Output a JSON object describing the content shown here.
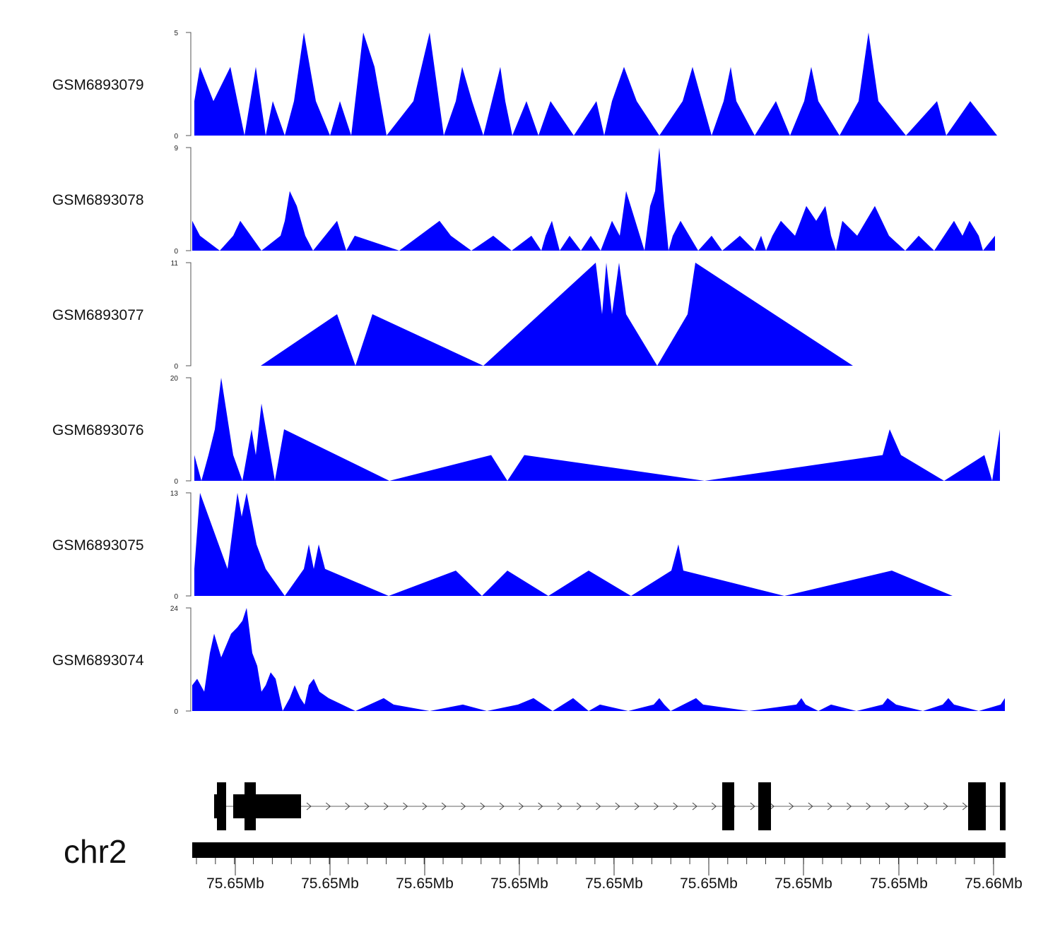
{
  "chart_data": {
    "type": "area",
    "fill_color": "#0000ff",
    "xlim": [
      0,
      1150
    ],
    "chromosome": "chr2",
    "x_axis_ticks": [
      "75.65Mb",
      "75.65Mb",
      "75.65Mb",
      "75.65Mb",
      "75.65Mb",
      "75.65Mb",
      "75.65Mb",
      "75.65Mb",
      "75.66Mb"
    ],
    "x_axis_tick_positions": [
      61,
      195,
      329,
      463,
      597,
      731,
      865,
      1000,
      1134
    ],
    "tracks": [
      {
        "name": "GSM6893079",
        "ylim": [
          0,
          5
        ],
        "ytick_labels": [
          "0",
          "5"
        ],
        "points": [
          [
            3,
            1.67
          ],
          [
            11,
            3.33
          ],
          [
            30,
            1.67
          ],
          [
            54,
            3.33
          ],
          [
            74,
            0
          ],
          [
            90,
            3.33
          ],
          [
            104,
            0
          ],
          [
            114,
            1.67
          ],
          [
            131,
            0
          ],
          [
            144,
            1.67
          ],
          [
            158,
            5
          ],
          [
            175,
            1.67
          ],
          [
            195,
            0
          ],
          [
            209,
            1.67
          ],
          [
            225,
            0
          ],
          [
            242,
            5
          ],
          [
            258,
            3.33
          ],
          [
            275,
            0
          ],
          [
            313,
            1.67
          ],
          [
            336,
            5
          ],
          [
            356,
            0
          ],
          [
            373,
            1.67
          ],
          [
            382,
            3.33
          ],
          [
            396,
            1.67
          ],
          [
            412,
            0
          ],
          [
            436,
            3.33
          ],
          [
            443,
            1.67
          ],
          [
            453,
            0
          ],
          [
            473,
            1.67
          ],
          [
            490,
            0
          ],
          [
            507,
            1.67
          ],
          [
            540,
            0
          ],
          [
            572,
            1.67
          ],
          [
            583,
            0
          ],
          [
            594,
            1.67
          ],
          [
            611,
            3.33
          ],
          [
            629,
            1.67
          ],
          [
            661,
            0
          ],
          [
            694,
            1.67
          ],
          [
            708,
            3.33
          ],
          [
            735,
            0
          ],
          [
            752,
            1.67
          ],
          [
            762,
            3.33
          ],
          [
            770,
            1.67
          ],
          [
            796,
            0
          ],
          [
            826,
            1.67
          ],
          [
            846,
            0
          ],
          [
            866,
            1.67
          ],
          [
            876,
            3.33
          ],
          [
            886,
            1.67
          ],
          [
            916,
            0
          ],
          [
            943,
            1.67
          ],
          [
            957,
            5
          ],
          [
            971,
            1.67
          ],
          [
            1010,
            0
          ],
          [
            1054,
            1.67
          ],
          [
            1067,
            0
          ],
          [
            1101,
            1.67
          ],
          [
            1139,
            0
          ]
        ]
      },
      {
        "name": "GSM6893078",
        "ylim": [
          0,
          9
        ],
        "ytick_labels": [
          "0",
          "9"
        ],
        "points": [
          [
            0,
            2.6
          ],
          [
            11,
            1.3
          ],
          [
            39,
            0
          ],
          [
            58,
            1.3
          ],
          [
            68,
            2.6
          ],
          [
            98,
            0
          ],
          [
            125,
            1.3
          ],
          [
            131,
            2.6
          ],
          [
            138,
            5.2
          ],
          [
            148,
            3.9
          ],
          [
            160,
            1.3
          ],
          [
            171,
            0
          ],
          [
            205,
            2.6
          ],
          [
            218,
            0
          ],
          [
            230,
            1.3
          ],
          [
            293,
            0
          ],
          [
            350,
            2.6
          ],
          [
            366,
            1.3
          ],
          [
            395,
            0
          ],
          [
            426,
            1.3
          ],
          [
            452,
            0
          ],
          [
            480,
            1.3
          ],
          [
            494,
            0
          ],
          [
            500,
            1.3
          ],
          [
            509,
            2.6
          ],
          [
            520,
            0
          ],
          [
            534,
            1.3
          ],
          [
            550,
            0
          ],
          [
            564,
            1.3
          ],
          [
            578,
            0
          ],
          [
            594,
            2.6
          ],
          [
            605,
            1.3
          ],
          [
            614,
            5.2
          ],
          [
            640,
            0
          ],
          [
            648,
            3.9
          ],
          [
            655,
            5.2
          ],
          [
            661,
            9
          ],
          [
            668,
            3.9
          ],
          [
            674,
            0
          ],
          [
            680,
            1.3
          ],
          [
            691,
            2.6
          ],
          [
            716,
            0
          ],
          [
            735,
            1.3
          ],
          [
            750,
            0
          ],
          [
            775,
            1.3
          ],
          [
            796,
            0
          ],
          [
            805,
            1.3
          ],
          [
            812,
            0
          ],
          [
            821,
            1.3
          ],
          [
            833,
            2.6
          ],
          [
            853,
            1.3
          ],
          [
            869,
            3.9
          ],
          [
            883,
            2.6
          ],
          [
            896,
            3.9
          ],
          [
            904,
            1.3
          ],
          [
            911,
            0
          ],
          [
            920,
            2.6
          ],
          [
            941,
            1.3
          ],
          [
            966,
            3.9
          ],
          [
            986,
            1.3
          ],
          [
            1009,
            0
          ],
          [
            1028,
            1.3
          ],
          [
            1050,
            0
          ],
          [
            1078,
            2.6
          ],
          [
            1090,
            1.3
          ],
          [
            1100,
            2.6
          ],
          [
            1113,
            1.3
          ],
          [
            1119,
            0
          ],
          [
            1136,
            1.3
          ]
        ]
      },
      {
        "name": "GSM6893077",
        "ylim": [
          0,
          11
        ],
        "ytick_labels": [
          "0",
          "11"
        ],
        "points": [
          [
            97,
            0
          ],
          [
            205,
            5.5
          ],
          [
            231,
            0
          ],
          [
            255,
            5.5
          ],
          [
            412,
            0
          ],
          [
            571,
            11
          ],
          [
            580,
            5.5
          ],
          [
            586,
            11
          ],
          [
            594,
            5.5
          ],
          [
            604,
            11
          ],
          [
            614,
            5.5
          ],
          [
            658,
            0
          ],
          [
            701,
            5.5
          ],
          [
            712,
            11
          ],
          [
            935,
            0
          ]
        ]
      },
      {
        "name": "GSM6893076",
        "ylim": [
          0,
          20
        ],
        "ytick_labels": [
          "0",
          "20"
        ],
        "points": [
          [
            3,
            5
          ],
          [
            13,
            0
          ],
          [
            23,
            5
          ],
          [
            32,
            10
          ],
          [
            41,
            20
          ],
          [
            58,
            5
          ],
          [
            71,
            0
          ],
          [
            84,
            10
          ],
          [
            90,
            5
          ],
          [
            98,
            15
          ],
          [
            117,
            0
          ],
          [
            130,
            10
          ],
          [
            279,
            0
          ],
          [
            423,
            5
          ],
          [
            446,
            0
          ],
          [
            470,
            5
          ],
          [
            725,
            0
          ],
          [
            977,
            5
          ],
          [
            987,
            10
          ],
          [
            1003,
            5
          ],
          [
            1064,
            0
          ],
          [
            1121,
            5
          ],
          [
            1132,
            0
          ],
          [
            1143,
            10
          ]
        ]
      },
      {
        "name": "GSM6893075",
        "ylim": [
          0,
          13
        ],
        "ytick_labels": [
          "0",
          "13"
        ],
        "points": [
          [
            3,
            3.4
          ],
          [
            11,
            13
          ],
          [
            50,
            3.4
          ],
          [
            64,
            13
          ],
          [
            70,
            10
          ],
          [
            77,
            13
          ],
          [
            91,
            6.5
          ],
          [
            104,
            3.4
          ],
          [
            131,
            0
          ],
          [
            158,
            3.4
          ],
          [
            165,
            6.5
          ],
          [
            172,
            3.4
          ],
          [
            179,
            6.5
          ],
          [
            188,
            3.4
          ],
          [
            278,
            0
          ],
          [
            373,
            3.2
          ],
          [
            410,
            0
          ],
          [
            446,
            3.2
          ],
          [
            504,
            0
          ],
          [
            561,
            3.2
          ],
          [
            621,
            0
          ],
          [
            678,
            3.2
          ],
          [
            688,
            6.5
          ],
          [
            695,
            3.2
          ],
          [
            838,
            0
          ],
          [
            990,
            3.2
          ],
          [
            1076,
            0
          ]
        ]
      },
      {
        "name": "GSM6893074",
        "ylim": [
          0,
          24
        ],
        "ytick_labels": [
          "0",
          "24"
        ],
        "points": [
          [
            0,
            6
          ],
          [
            7,
            7.5
          ],
          [
            17,
            4.5
          ],
          [
            25,
            13.5
          ],
          [
            31,
            18
          ],
          [
            41,
            12.5
          ],
          [
            55,
            18
          ],
          [
            64,
            19.5
          ],
          [
            71,
            21
          ],
          [
            77,
            24
          ],
          [
            85,
            13.5
          ],
          [
            92,
            10.5
          ],
          [
            98,
            4.5
          ],
          [
            104,
            6
          ],
          [
            111,
            9
          ],
          [
            118,
            7.5
          ],
          [
            128,
            0
          ],
          [
            138,
            3
          ],
          [
            145,
            6
          ],
          [
            153,
            3
          ],
          [
            159,
            1.5
          ],
          [
            165,
            6
          ],
          [
            172,
            7.5
          ],
          [
            180,
            4.5
          ],
          [
            193,
            3
          ],
          [
            231,
            0
          ],
          [
            251,
            1.5
          ],
          [
            271,
            3
          ],
          [
            285,
            1.5
          ],
          [
            336,
            0
          ],
          [
            383,
            1.5
          ],
          [
            417,
            0
          ],
          [
            461,
            1.5
          ],
          [
            483,
            3
          ],
          [
            510,
            0
          ],
          [
            539,
            3
          ],
          [
            550,
            1.5
          ],
          [
            561,
            0
          ],
          [
            577,
            1.5
          ],
          [
            617,
            0
          ],
          [
            653,
            1.5
          ],
          [
            661,
            3
          ],
          [
            668,
            1.5
          ],
          [
            677,
            0
          ],
          [
            713,
            3
          ],
          [
            723,
            1.5
          ],
          [
            788,
            0
          ],
          [
            855,
            1.5
          ],
          [
            862,
            3
          ],
          [
            868,
            1.5
          ],
          [
            886,
            0
          ],
          [
            904,
            1.5
          ],
          [
            940,
            0
          ],
          [
            977,
            1.5
          ],
          [
            984,
            3
          ],
          [
            996,
            1.5
          ],
          [
            1034,
            0
          ],
          [
            1062,
            1.5
          ],
          [
            1070,
            3
          ],
          [
            1078,
            1.5
          ],
          [
            1113,
            0
          ],
          [
            1144,
            1.5
          ],
          [
            1150,
            3
          ]
        ]
      }
    ],
    "gene_model": {
      "exons": [
        [
          35,
          48
        ],
        [
          74,
          90
        ],
        [
          750,
          767
        ],
        [
          801,
          819
        ],
        [
          1098,
          1123
        ],
        [
          1143,
          1151
        ]
      ],
      "utr": [
        [
          31,
          48
        ],
        [
          58,
          154
        ]
      ],
      "intron": [
        31,
        1151
      ],
      "strand": "+"
    }
  }
}
